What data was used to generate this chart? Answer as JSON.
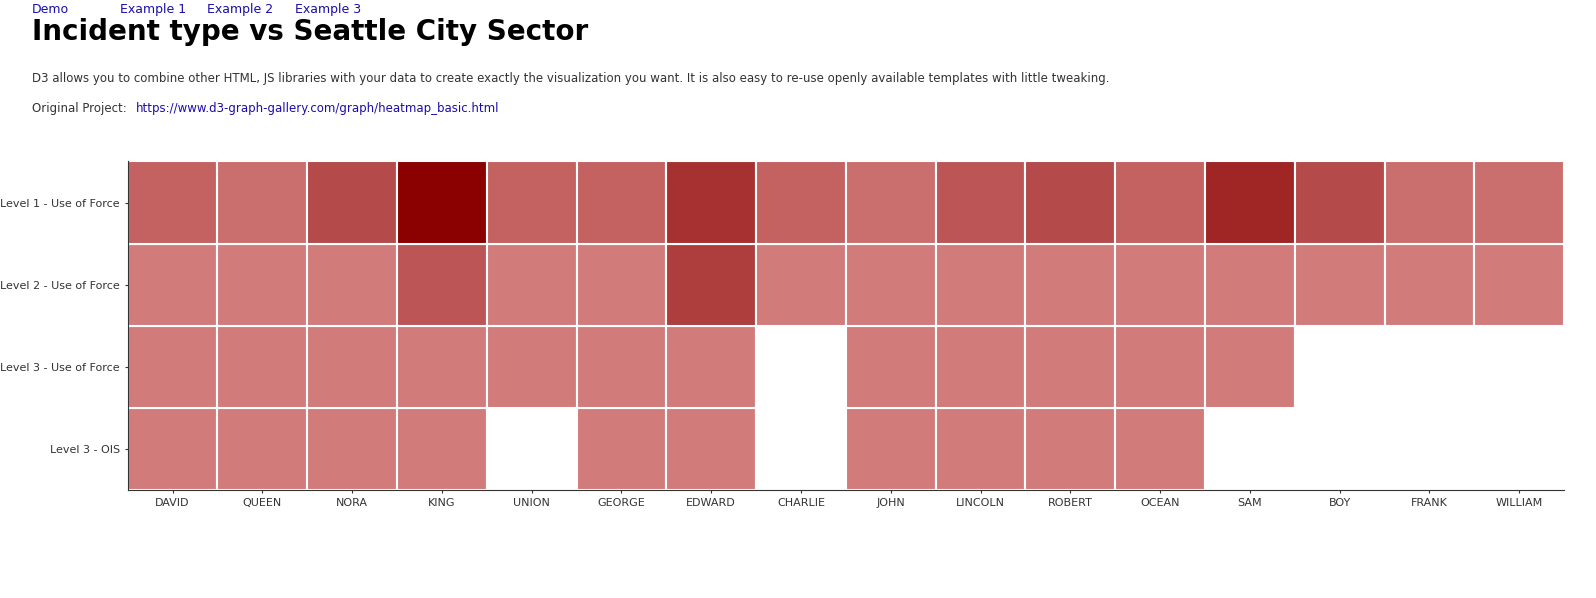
{
  "title": "Incident type vs Seattle City Sector",
  "subtitle_line1": "D3 allows you to combine other HTML, JS libraries with your data to create exactly the visualization you want. It is also easy to re-use openly available templates with little tweaking.",
  "subtitle_line2": "Original Project: https://www.d3-graph-gallery.com/graph/heatmap_basic.html",
  "x_labels": [
    "DAVID",
    "QUEEN",
    "NORA",
    "KING",
    "UNION",
    "GEORGE",
    "EDWARD",
    "CHARLIE",
    "JOHN",
    "LINCOLN",
    "ROBERT",
    "OCEAN",
    "SAM",
    "BOY",
    "FRANK",
    "WILLIAM"
  ],
  "y_labels": [
    "Level 3 - OIS",
    "Level 3 - Use of Force",
    "Level 2 - Use of Force",
    "Level 1 - Use of Force"
  ],
  "data": {
    "Level 3 - OIS": [
      5,
      5,
      5,
      5,
      0,
      5,
      5,
      0,
      5,
      5,
      5,
      5,
      0,
      0,
      0,
      0
    ],
    "Level 3 - Use of Force": [
      5,
      5,
      5,
      5,
      5,
      5,
      5,
      0,
      5,
      5,
      5,
      5,
      5,
      0,
      0,
      0
    ],
    "Level 2 - Use of Force": [
      5,
      5,
      5,
      8,
      5,
      5,
      10,
      5,
      5,
      5,
      5,
      5,
      5,
      5,
      5,
      5
    ],
    "Level 1 - Use of Force": [
      7,
      6,
      9,
      15,
      7,
      7,
      11,
      7,
      6,
      8,
      9,
      7,
      12,
      9,
      6,
      6
    ]
  },
  "value_range": [
    0,
    15
  ],
  "background_color": "#ffffff",
  "cell_low_color": "#f5b8b8",
  "cell_high_color": "#8b0000",
  "cell_missing_color": "#ffffff",
  "grid_color": "#ffffff",
  "text_color": "#333333",
  "title_fontsize": 20,
  "label_fontsize": 8.5,
  "axis_label_fontsize": 8
}
